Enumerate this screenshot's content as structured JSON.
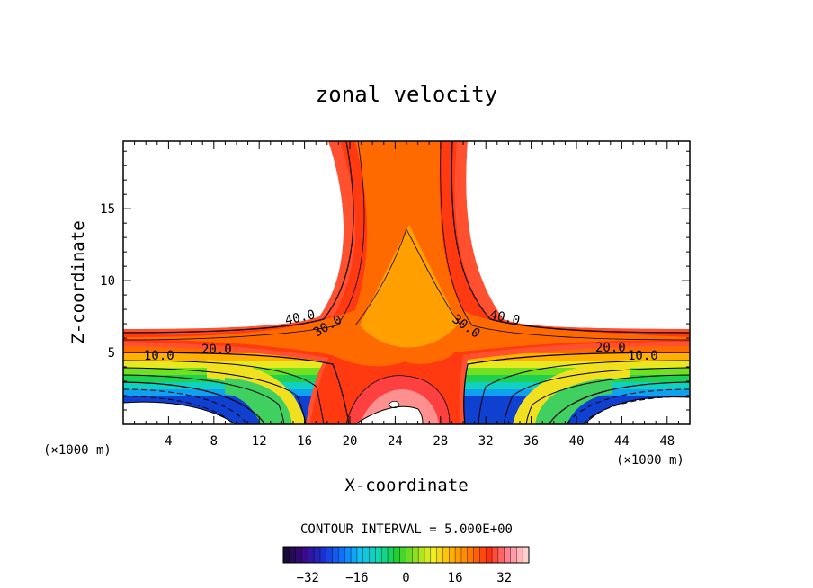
{
  "chart_data": {
    "type": "heatmap",
    "title": "zonal velocity",
    "xlabel": "X-coordinate",
    "ylabel": "Z-coordinate",
    "x_unit_left": "(×1000 m)",
    "x_unit_right": "(×1000 m)",
    "xlim": [
      0,
      50
    ],
    "ylim": [
      0,
      19.7
    ],
    "x_ticks": [
      4,
      8,
      12,
      16,
      20,
      24,
      28,
      32,
      36,
      40,
      44,
      48
    ],
    "y_ticks": [
      5,
      10,
      15
    ],
    "contour_labels": [
      "40.0",
      "30.0",
      "20.0",
      "10.0",
      "30.0",
      "40.0",
      "20.0",
      "10.0"
    ],
    "contour_interval_text": "CONTOUR INTERVAL = 5.000E+00",
    "colorbar": {
      "ticks": [
        -32,
        -16,
        0,
        16,
        32
      ],
      "range": [
        -40,
        40
      ],
      "colormap": [
        "#1a0a3a",
        "#3a0a8a",
        "#1a30d0",
        "#0f70ff",
        "#10c0f0",
        "#10d8b0",
        "#20d030",
        "#90e020",
        "#f0f020",
        "#ffb000",
        "#ff7800",
        "#ff3010",
        "#ff8090",
        "#ffd0d0"
      ]
    },
    "grid": false,
    "legend": "colorbar-bottom"
  }
}
